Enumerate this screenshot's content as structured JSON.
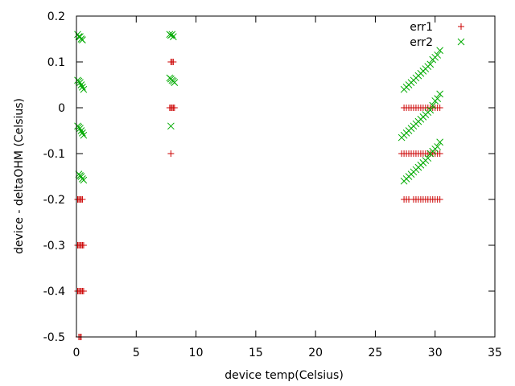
{
  "chart_data": {
    "type": "scatter",
    "title": "",
    "xlabel": "device temp(Celsius)",
    "ylabel": "device - deltaOHM (Celsius)",
    "xlim": [
      0,
      35
    ],
    "ylim": [
      -0.5,
      0.2
    ],
    "xticks": [
      0,
      5,
      10,
      15,
      20,
      25,
      30,
      35
    ],
    "yticks": [
      -0.5,
      -0.4,
      -0.3,
      -0.2,
      -0.1,
      0,
      0.1,
      0.2
    ],
    "xtick_labels": [
      "0",
      "5",
      "10",
      "15",
      "20",
      "25",
      "30",
      "35"
    ],
    "ytick_labels": [
      "-0.5",
      "-0.4",
      "-0.3",
      "-0.2",
      "-0.1",
      "0",
      "0.1",
      "0.2"
    ],
    "grid": false,
    "legend_position": "top-right",
    "series": [
      {
        "name": "err1",
        "marker": "plus",
        "color": "#cc0000",
        "points": [
          [
            0.1,
            -0.2
          ],
          [
            0.2,
            -0.2
          ],
          [
            0.3,
            -0.2
          ],
          [
            0.4,
            -0.2
          ],
          [
            0.5,
            -0.2
          ],
          [
            0.1,
            -0.3
          ],
          [
            0.2,
            -0.3
          ],
          [
            0.3,
            -0.3
          ],
          [
            0.4,
            -0.3
          ],
          [
            0.5,
            -0.3
          ],
          [
            0.6,
            -0.3
          ],
          [
            0.1,
            -0.4
          ],
          [
            0.2,
            -0.4
          ],
          [
            0.3,
            -0.4
          ],
          [
            0.4,
            -0.4
          ],
          [
            0.5,
            -0.4
          ],
          [
            0.6,
            -0.4
          ],
          [
            0.2,
            -0.5
          ],
          [
            0.3,
            -0.5
          ],
          [
            0.4,
            -0.5
          ],
          [
            7.9,
            0.1
          ],
          [
            8.0,
            0.1
          ],
          [
            8.1,
            0.1
          ],
          [
            7.8,
            0.0
          ],
          [
            7.9,
            0.0
          ],
          [
            8.0,
            0.0
          ],
          [
            8.1,
            0.0
          ],
          [
            8.2,
            0.0
          ],
          [
            7.9,
            -0.1
          ],
          [
            27.4,
            0.0
          ],
          [
            27.6,
            0.0
          ],
          [
            27.8,
            0.0
          ],
          [
            28.0,
            0.0
          ],
          [
            28.2,
            0.0
          ],
          [
            28.4,
            0.0
          ],
          [
            28.6,
            0.0
          ],
          [
            28.8,
            0.0
          ],
          [
            29.0,
            0.0
          ],
          [
            29.2,
            0.0
          ],
          [
            29.4,
            0.0
          ],
          [
            29.6,
            0.0
          ],
          [
            29.8,
            0.0
          ],
          [
            30.0,
            0.0
          ],
          [
            30.2,
            0.0
          ],
          [
            30.4,
            0.0
          ],
          [
            27.2,
            -0.1
          ],
          [
            27.4,
            -0.1
          ],
          [
            27.6,
            -0.1
          ],
          [
            27.8,
            -0.1
          ],
          [
            28.0,
            -0.1
          ],
          [
            28.2,
            -0.1
          ],
          [
            28.4,
            -0.1
          ],
          [
            28.6,
            -0.1
          ],
          [
            28.8,
            -0.1
          ],
          [
            29.0,
            -0.1
          ],
          [
            29.2,
            -0.1
          ],
          [
            29.4,
            -0.1
          ],
          [
            29.6,
            -0.1
          ],
          [
            29.8,
            -0.1
          ],
          [
            30.0,
            -0.1
          ],
          [
            30.2,
            -0.1
          ],
          [
            30.4,
            -0.1
          ],
          [
            27.4,
            -0.2
          ],
          [
            27.6,
            -0.2
          ],
          [
            27.8,
            -0.2
          ],
          [
            28.2,
            -0.2
          ],
          [
            28.4,
            -0.2
          ],
          [
            28.6,
            -0.2
          ],
          [
            28.8,
            -0.2
          ],
          [
            29.0,
            -0.2
          ],
          [
            29.2,
            -0.2
          ],
          [
            29.4,
            -0.2
          ],
          [
            29.6,
            -0.2
          ],
          [
            29.8,
            -0.2
          ],
          [
            30.0,
            -0.2
          ],
          [
            30.2,
            -0.2
          ],
          [
            30.4,
            -0.2
          ]
        ]
      },
      {
        "name": "err2",
        "marker": "cross",
        "color": "#00aa00",
        "points": [
          [
            0.1,
            0.16
          ],
          [
            0.2,
            0.155
          ],
          [
            0.3,
            0.155
          ],
          [
            0.4,
            0.15
          ],
          [
            0.5,
            0.148
          ],
          [
            0.1,
            0.06
          ],
          [
            0.2,
            0.058
          ],
          [
            0.3,
            0.055
          ],
          [
            0.4,
            0.05
          ],
          [
            0.5,
            0.045
          ],
          [
            0.6,
            0.04
          ],
          [
            0.1,
            -0.04
          ],
          [
            0.2,
            -0.042
          ],
          [
            0.3,
            -0.045
          ],
          [
            0.4,
            -0.05
          ],
          [
            0.5,
            -0.055
          ],
          [
            0.6,
            -0.06
          ],
          [
            0.2,
            -0.145
          ],
          [
            0.3,
            -0.148
          ],
          [
            0.4,
            -0.15
          ],
          [
            0.5,
            -0.155
          ],
          [
            0.6,
            -0.158
          ],
          [
            7.8,
            0.16
          ],
          [
            7.9,
            0.158
          ],
          [
            8.0,
            0.16
          ],
          [
            8.1,
            0.155
          ],
          [
            7.8,
            0.065
          ],
          [
            7.9,
            0.063
          ],
          [
            8.0,
            0.06
          ],
          [
            8.1,
            0.058
          ],
          [
            8.2,
            0.055
          ],
          [
            7.9,
            -0.04
          ],
          [
            27.4,
            0.04
          ],
          [
            27.6,
            0.045
          ],
          [
            27.8,
            0.05
          ],
          [
            28.0,
            0.055
          ],
          [
            28.2,
            0.06
          ],
          [
            28.4,
            0.065
          ],
          [
            28.6,
            0.07
          ],
          [
            28.8,
            0.075
          ],
          [
            29.0,
            0.08
          ],
          [
            29.2,
            0.085
          ],
          [
            29.4,
            0.09
          ],
          [
            29.6,
            0.095
          ],
          [
            29.8,
            0.105
          ],
          [
            30.0,
            0.11
          ],
          [
            30.2,
            0.115
          ],
          [
            30.4,
            0.125
          ],
          [
            27.2,
            -0.065
          ],
          [
            27.4,
            -0.06
          ],
          [
            27.6,
            -0.055
          ],
          [
            27.8,
            -0.05
          ],
          [
            28.0,
            -0.045
          ],
          [
            28.2,
            -0.04
          ],
          [
            28.4,
            -0.035
          ],
          [
            28.6,
            -0.03
          ],
          [
            28.8,
            -0.025
          ],
          [
            29.0,
            -0.02
          ],
          [
            29.2,
            -0.015
          ],
          [
            29.4,
            -0.01
          ],
          [
            29.6,
            -0.005
          ],
          [
            29.8,
            0.005
          ],
          [
            30.0,
            0.015
          ],
          [
            30.2,
            0.02
          ],
          [
            30.4,
            0.03
          ],
          [
            27.4,
            -0.16
          ],
          [
            27.6,
            -0.155
          ],
          [
            27.8,
            -0.15
          ],
          [
            28.0,
            -0.145
          ],
          [
            28.2,
            -0.14
          ],
          [
            28.4,
            -0.135
          ],
          [
            28.6,
            -0.13
          ],
          [
            28.8,
            -0.125
          ],
          [
            29.0,
            -0.12
          ],
          [
            29.2,
            -0.115
          ],
          [
            29.4,
            -0.11
          ],
          [
            29.6,
            -0.1
          ],
          [
            29.8,
            -0.095
          ],
          [
            30.0,
            -0.09
          ],
          [
            30.2,
            -0.085
          ],
          [
            30.4,
            -0.075
          ]
        ]
      }
    ]
  }
}
